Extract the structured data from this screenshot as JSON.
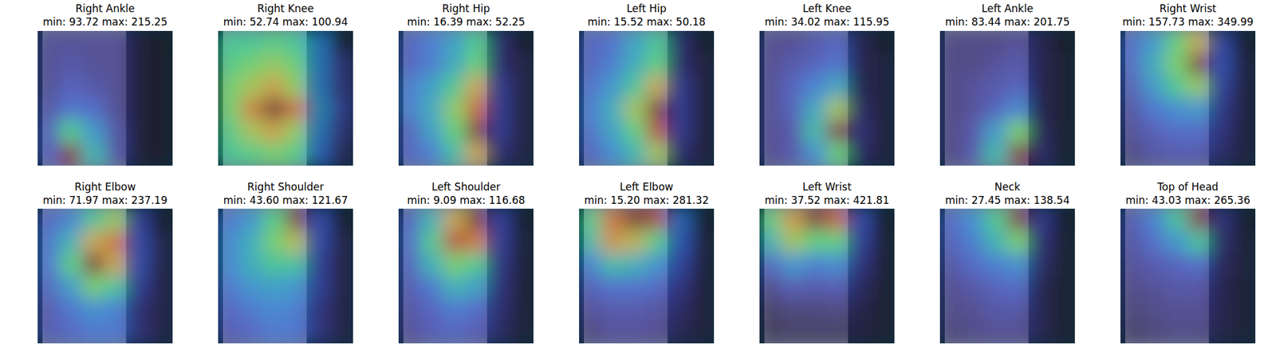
{
  "chart_data": [
    {
      "type": "heatmap",
      "title": "Right Ankle",
      "subtitle": "min: 93.72 max: 215.25",
      "color_range": [
        93.72,
        215.25
      ],
      "cells": [
        [
          100,
          100,
          100,
          100,
          95,
          93.72
        ],
        [
          100,
          102,
          100,
          100,
          95,
          94
        ],
        [
          100,
          105,
          102,
          100,
          95,
          94
        ],
        [
          102,
          110,
          108,
          100,
          95,
          94
        ],
        [
          105,
          140,
          120,
          102,
          95,
          94
        ],
        [
          105,
          215.25,
          130,
          102,
          95,
          94
        ]
      ]
    },
    {
      "type": "heatmap",
      "title": "Right Knee",
      "subtitle": "min: 52.74 max: 100.94",
      "color_range": [
        52.74,
        100.94
      ],
      "cells": [
        [
          70,
          70,
          72,
          70,
          62,
          52.74
        ],
        [
          72,
          75,
          78,
          74,
          62,
          55
        ],
        [
          75,
          80,
          85,
          78,
          62,
          55
        ],
        [
          75,
          88,
          100.94,
          90,
          64,
          56
        ],
        [
          72,
          80,
          85,
          78,
          62,
          55
        ],
        [
          70,
          72,
          75,
          72,
          60,
          54
        ]
      ]
    },
    {
      "type": "heatmap",
      "title": "Right Hip",
      "subtitle": "min: 16.39 max: 52.25",
      "color_range": [
        16.39,
        52.25
      ],
      "cells": [
        [
          20,
          22,
          25,
          30,
          18,
          16.39
        ],
        [
          20,
          22,
          26,
          32,
          18,
          17
        ],
        [
          22,
          25,
          30,
          40,
          19,
          17
        ],
        [
          22,
          26,
          35,
          45,
          19,
          17
        ],
        [
          20,
          25,
          32,
          52.25,
          19,
          17
        ],
        [
          20,
          22,
          28,
          40,
          18,
          17
        ]
      ]
    },
    {
      "type": "heatmap",
      "title": "Left Hip",
      "subtitle": "min: 15.52 max: 50.18",
      "color_range": [
        15.52,
        50.18
      ],
      "cells": [
        [
          19,
          20,
          24,
          28,
          17,
          15.52
        ],
        [
          19,
          21,
          25,
          30,
          17,
          16
        ],
        [
          20,
          23,
          28,
          38,
          18,
          16
        ],
        [
          21,
          25,
          35,
          50.18,
          18,
          16
        ],
        [
          20,
          24,
          30,
          45,
          18,
          16
        ],
        [
          19,
          22,
          26,
          35,
          17,
          16
        ]
      ]
    },
    {
      "type": "heatmap",
      "title": "Left Knee",
      "subtitle": "min: 34.02 max: 115.95",
      "color_range": [
        34.02,
        115.95
      ],
      "cells": [
        [
          38,
          38,
          40,
          42,
          36,
          34.02
        ],
        [
          38,
          40,
          42,
          45,
          36,
          35
        ],
        [
          38,
          42,
          48,
          55,
          36,
          35
        ],
        [
          38,
          42,
          55,
          80,
          37,
          35
        ],
        [
          38,
          40,
          60,
          115.95,
          38,
          35
        ],
        [
          38,
          40,
          50,
          70,
          37,
          35
        ]
      ]
    },
    {
      "type": "heatmap",
      "title": "Left Ankle",
      "subtitle": "min: 83.44 max: 201.75",
      "color_range": [
        83.44,
        201.75
      ],
      "cells": [
        [
          88,
          88,
          88,
          90,
          86,
          83.44
        ],
        [
          88,
          88,
          90,
          92,
          86,
          84
        ],
        [
          88,
          90,
          92,
          95,
          86,
          84
        ],
        [
          88,
          90,
          95,
          105,
          86,
          84
        ],
        [
          88,
          92,
          110,
          140,
          87,
          84
        ],
        [
          88,
          92,
          120,
          201.75,
          88,
          84
        ]
      ]
    },
    {
      "type": "heatmap",
      "title": "Right Wrist",
      "subtitle": "min: 157.73 max: 349.99",
      "color_range": [
        157.73,
        349.99
      ],
      "cells": [
        [
          180,
          200,
          240,
          280,
          175,
          157.73
        ],
        [
          180,
          210,
          250,
          349.99,
          180,
          160
        ],
        [
          175,
          200,
          230,
          260,
          175,
          160
        ],
        [
          170,
          185,
          195,
          200,
          170,
          160
        ],
        [
          168,
          175,
          180,
          180,
          168,
          160
        ],
        [
          165,
          170,
          172,
          172,
          165,
          160
        ]
      ]
    },
    {
      "type": "heatmap",
      "title": "Right Elbow",
      "subtitle": "min: 71.97 max: 237.19",
      "color_range": [
        71.97,
        237.19
      ],
      "cells": [
        [
          90,
          100,
          130,
          160,
          85,
          71.97
        ],
        [
          95,
          120,
          180,
          200,
          90,
          75
        ],
        [
          95,
          140,
          237.19,
          180,
          90,
          75
        ],
        [
          90,
          110,
          150,
          130,
          85,
          75
        ],
        [
          85,
          95,
          105,
          100,
          80,
          75
        ],
        [
          85,
          90,
          95,
          95,
          80,
          75
        ]
      ]
    },
    {
      "type": "heatmap",
      "title": "Right Shoulder",
      "subtitle": "min: 43.60 max: 121.67",
      "color_range": [
        43.6,
        121.67
      ],
      "cells": [
        [
          55,
          60,
          75,
          121.67,
          52,
          43.6
        ],
        [
          58,
          65,
          80,
          90,
          52,
          45
        ],
        [
          58,
          65,
          72,
          70,
          50,
          45
        ],
        [
          55,
          60,
          62,
          60,
          50,
          45
        ],
        [
          52,
          55,
          58,
          56,
          48,
          45
        ],
        [
          50,
          52,
          55,
          54,
          48,
          45
        ]
      ]
    },
    {
      "type": "heatmap",
      "title": "Left Shoulder",
      "subtitle": "min: 9.09 max: 116.68",
      "color_range": [
        9.09,
        116.68
      ],
      "cells": [
        [
          20,
          40,
          80,
          116.68,
          18,
          9.09
        ],
        [
          22,
          50,
          100,
          90,
          18,
          10
        ],
        [
          20,
          40,
          60,
          50,
          16,
          10
        ],
        [
          18,
          25,
          40,
          35,
          15,
          10
        ],
        [
          16,
          20,
          25,
          22,
          14,
          10
        ],
        [
          15,
          18,
          20,
          18,
          13,
          10
        ]
      ]
    },
    {
      "type": "heatmap",
      "title": "Left Elbow",
      "subtitle": "min: 15.20 max: 281.32",
      "color_range": [
        15.2,
        281.32
      ],
      "cells": [
        [
          120,
          220,
          281.32,
          250,
          60,
          15.2
        ],
        [
          100,
          200,
          180,
          120,
          50,
          18
        ],
        [
          60,
          100,
          90,
          70,
          40,
          18
        ],
        [
          40,
          50,
          50,
          45,
          30,
          18
        ],
        [
          30,
          35,
          35,
          32,
          25,
          18
        ],
        [
          25,
          30,
          30,
          28,
          22,
          18
        ]
      ]
    },
    {
      "type": "heatmap",
      "title": "Left Wrist",
      "subtitle": "min: 37.52 max: 421.81",
      "color_range": [
        37.52,
        421.81
      ],
      "cells": [
        [
          200,
          300,
          421.81,
          350,
          80,
          37.52
        ],
        [
          150,
          250,
          200,
          200,
          70,
          40
        ],
        [
          80,
          120,
          100,
          110,
          60,
          40
        ],
        [
          55,
          70,
          65,
          70,
          50,
          40
        ],
        [
          45,
          50,
          50,
          52,
          45,
          40
        ],
        [
          42,
          45,
          45,
          45,
          42,
          40
        ]
      ]
    },
    {
      "type": "heatmap",
      "title": "Neck",
      "subtitle": "min: 27.45 max: 138.54",
      "color_range": [
        27.45,
        138.54
      ],
      "cells": [
        [
          40,
          50,
          70,
          138.54,
          35,
          27.45
        ],
        [
          38,
          45,
          60,
          80,
          33,
          28
        ],
        [
          35,
          40,
          45,
          50,
          32,
          28
        ],
        [
          33,
          35,
          38,
          40,
          30,
          28
        ],
        [
          32,
          33,
          35,
          35,
          30,
          28
        ],
        [
          31,
          32,
          33,
          33,
          30,
          28
        ]
      ]
    },
    {
      "type": "heatmap",
      "title": "Top of Head",
      "subtitle": "min: 43.03 max: 265.36",
      "color_range": [
        43.03,
        265.36
      ],
      "cells": [
        [
          60,
          80,
          120,
          265.36,
          55,
          43.03
        ],
        [
          58,
          70,
          90,
          120,
          52,
          45
        ],
        [
          55,
          60,
          65,
          70,
          50,
          45
        ],
        [
          52,
          55,
          58,
          58,
          48,
          45
        ],
        [
          50,
          52,
          54,
          54,
          48,
          45
        ],
        [
          48,
          50,
          52,
          52,
          47,
          45
        ]
      ]
    }
  ]
}
